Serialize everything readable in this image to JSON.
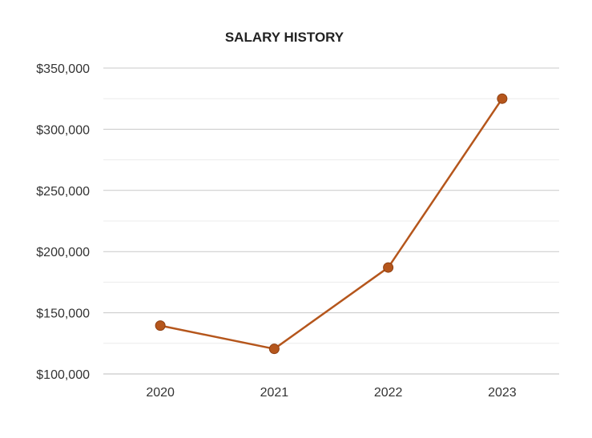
{
  "chart_data": {
    "type": "line",
    "title": "SALARY HISTORY",
    "categories": [
      "2020",
      "2021",
      "2022",
      "2023"
    ],
    "series": [
      {
        "values": [
          139500,
          120500,
          187000,
          325000
        ]
      }
    ],
    "ylim": [
      100000,
      350000
    ],
    "yticks": [
      100000,
      150000,
      200000,
      250000,
      300000,
      350000
    ],
    "ytick_labels": [
      "$100,000",
      "$150,000",
      "$200,000",
      "$250,000",
      "$300,000",
      "$350,000"
    ],
    "grid": true,
    "minor_grid": true,
    "line_color": "#b5561c"
  }
}
